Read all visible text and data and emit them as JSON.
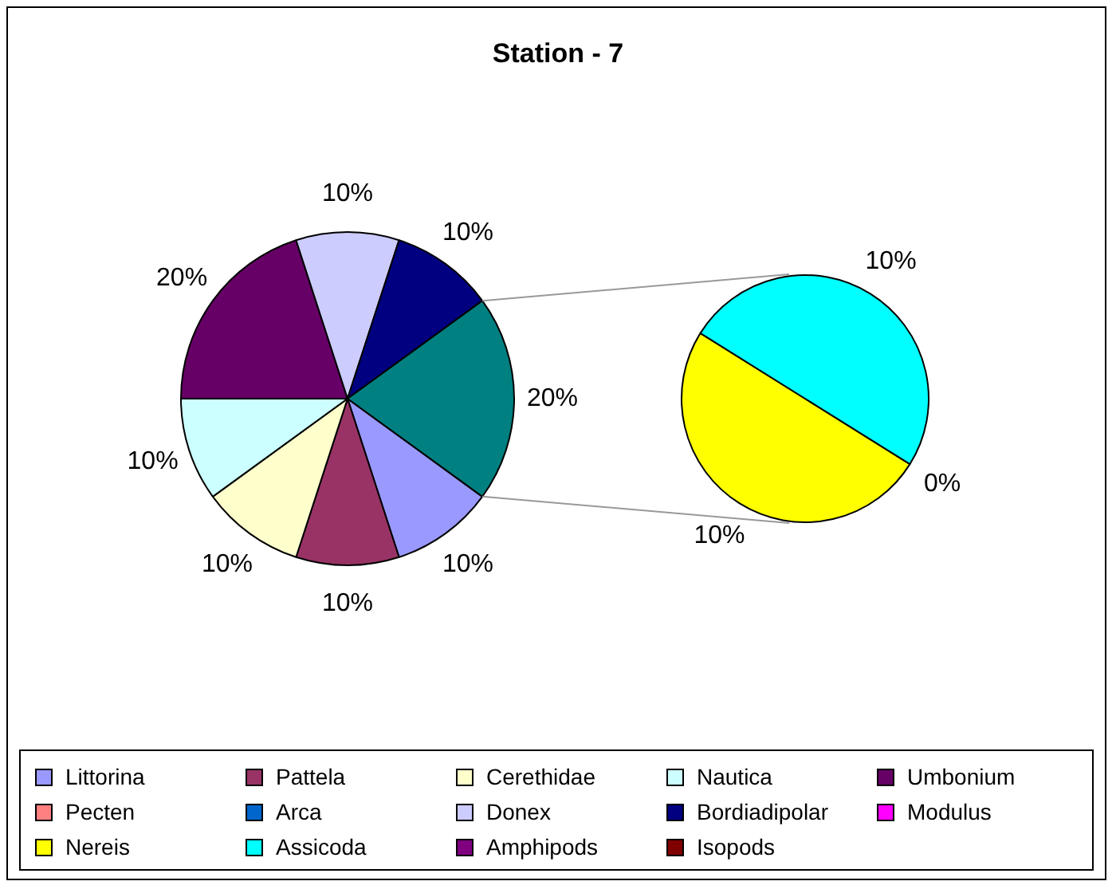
{
  "chart_data": [
    {
      "type": "pie",
      "title": "Station - 7",
      "categories": [
        "Littorina",
        "Pattela",
        "Cerethidae",
        "Nautica",
        "Umbonium",
        "Pecten",
        "Arca",
        "Donex",
        "Bordiadipolar",
        "Modulus",
        null
      ],
      "values": [
        10,
        10,
        10,
        10,
        20,
        0,
        0,
        10,
        10,
        0,
        20
      ],
      "colors": [
        "#9999ff",
        "#993366",
        "#ffffcc",
        "#ccffff",
        "#660066",
        "#ff8080",
        "#0066cc",
        "#ccccff",
        "#000080",
        "#ff00ff",
        "#008080"
      ],
      "value_labels": [
        "10%",
        "10%",
        "10%",
        "10%",
        "20%",
        null,
        null,
        "10%",
        "10%",
        null,
        "20%"
      ],
      "legend": "bottom"
    },
    {
      "type": "pie",
      "categories": [
        "Nereis",
        "Assicoda",
        "Amphipods",
        "Isopods"
      ],
      "values": [
        10,
        10,
        0,
        0
      ],
      "colors": [
        "#ffff00",
        "#00ffff",
        "#800080",
        "#800000"
      ],
      "value_labels": [
        "10%",
        "10%",
        "0%",
        null
      ],
      "legend": "bottom"
    }
  ]
}
